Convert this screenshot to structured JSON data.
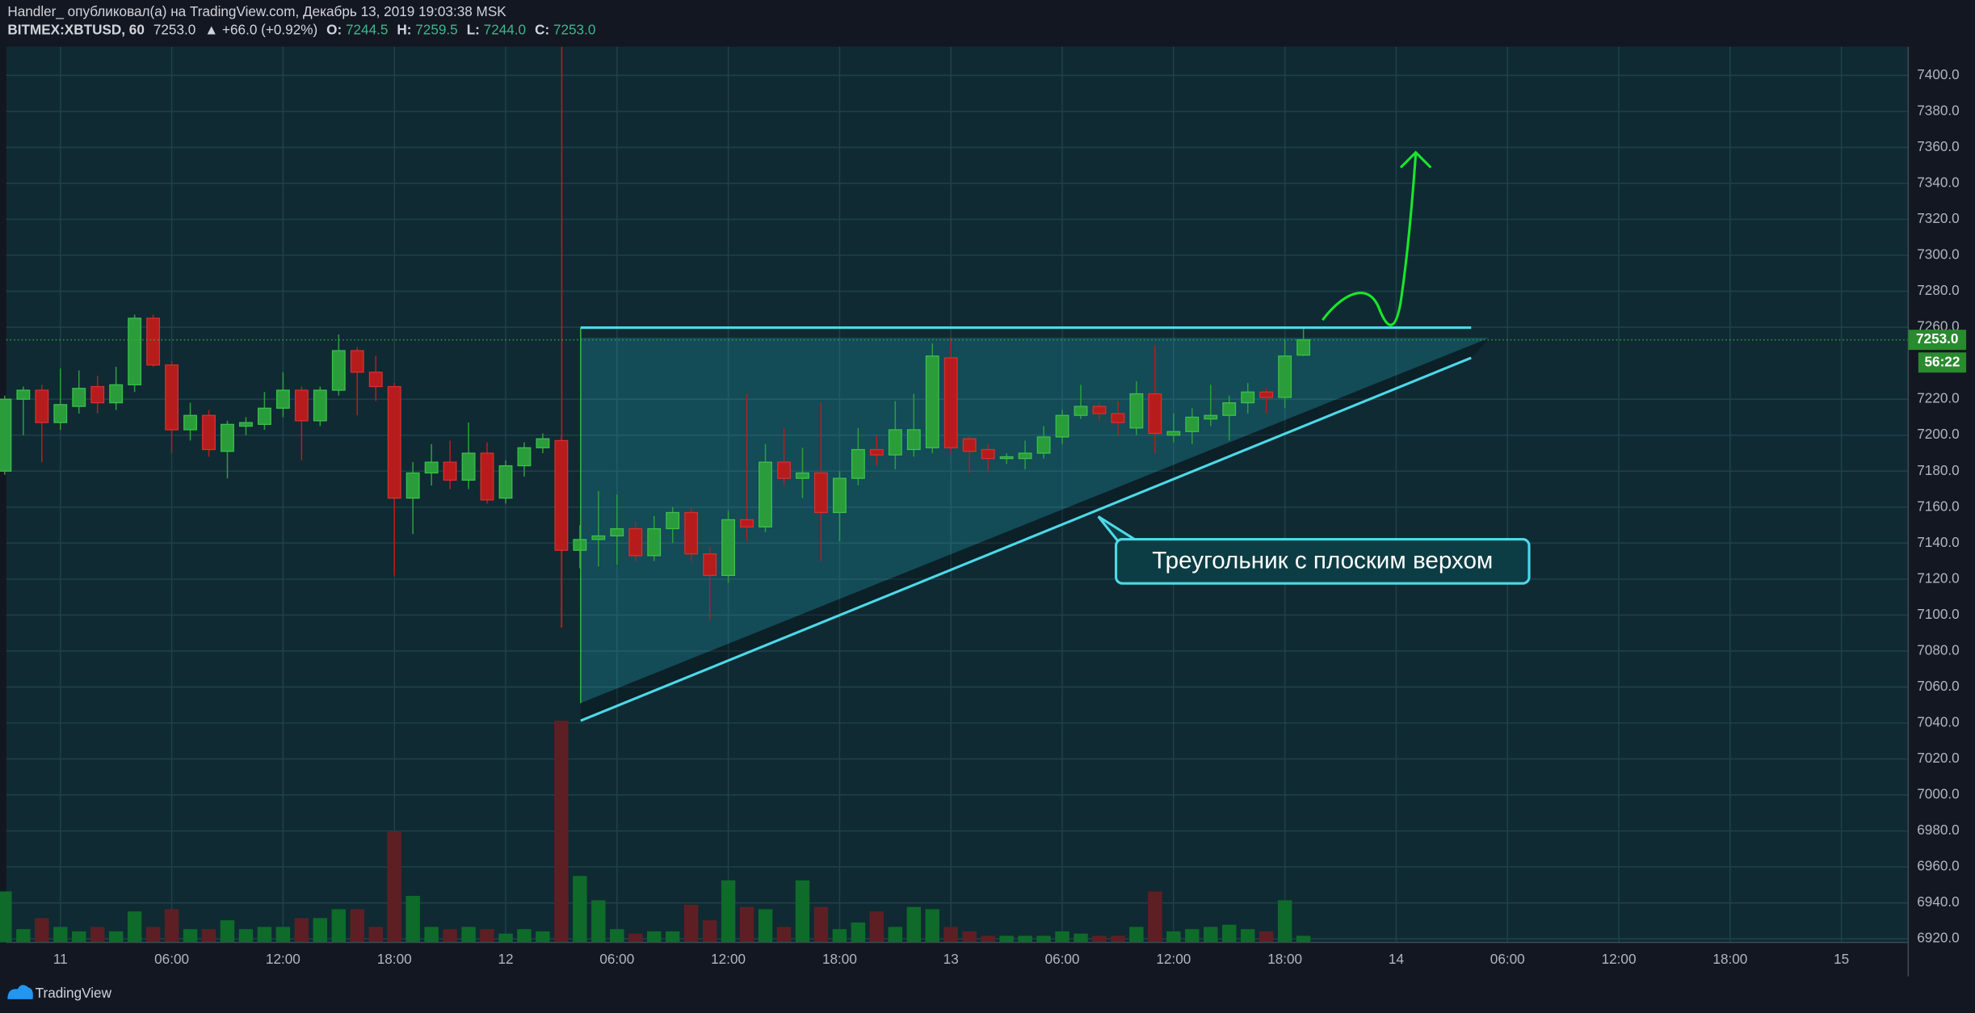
{
  "header": {
    "title": "Handler_ опубликовал(а) на TradingView.com, Декабрь 13, 2019 19:03:38 MSK",
    "symbol": "BITMEX:XBTUSD, 60",
    "last": "7253.0",
    "change": "▲ +66.0 (+0.92%)",
    "o_label": "O:",
    "o": "7244.5",
    "h_label": "H:",
    "h": "7259.5",
    "l_label": "L:",
    "l": "7244.0",
    "c_label": "C:",
    "c": "7253.0"
  },
  "chart_data": {
    "type": "candlestick",
    "x": [
      "10 21:00",
      "10 22:00",
      "10 23:00",
      "11 00:00",
      "11 01:00",
      "11 02:00",
      "11 03:00",
      "11 04:00",
      "11 05:00",
      "11 06:00",
      "11 07:00",
      "11 08:00",
      "11 09:00",
      "11 10:00",
      "11 11:00",
      "11 12:00",
      "11 13:00",
      "11 14:00",
      "11 15:00",
      "11 16:00",
      "11 17:00",
      "11 18:00",
      "11 19:00",
      "11 20:00",
      "11 21:00",
      "11 22:00",
      "11 23:00",
      "12 00:00",
      "12 01:00",
      "12 02:00",
      "12 03:00",
      "12 04:00",
      "12 05:00",
      "12 06:00",
      "12 07:00",
      "12 08:00",
      "12 09:00",
      "12 10:00",
      "12 11:00",
      "12 12:00",
      "12 13:00",
      "12 14:00",
      "12 15:00",
      "12 16:00",
      "12 17:00",
      "12 18:00",
      "12 19:00",
      "12 20:00",
      "12 21:00",
      "12 22:00",
      "12 23:00",
      "13 00:00",
      "13 01:00",
      "13 02:00",
      "13 03:00",
      "13 04:00",
      "13 05:00",
      "13 06:00",
      "13 07:00",
      "13 08:00",
      "13 09:00",
      "13 10:00",
      "13 11:00",
      "13 12:00",
      "13 13:00",
      "13 14:00",
      "13 15:00",
      "13 16:00",
      "13 17:00",
      "13 18:00",
      "13 19:00"
    ],
    "open": [
      7180,
      7220,
      7225,
      7207,
      7216,
      7227,
      7218,
      7228,
      7265,
      7239,
      7203,
      7211,
      7191,
      7205,
      7206,
      7215,
      7225,
      7208,
      7225,
      7247,
      7235,
      7227,
      7165,
      7179,
      7185,
      7175,
      7190,
      7165,
      7183,
      7193,
      7197,
      7136,
      7142,
      7144,
      7148,
      7133,
      7148,
      7157,
      7134,
      7122,
      7153,
      7149,
      7185,
      7176,
      7179,
      7157,
      7176,
      7192,
      7189,
      7192,
      7193,
      7243,
      7198,
      7192,
      7187,
      7187,
      7190,
      7199,
      7211,
      7216,
      7212,
      7204,
      7223,
      7200,
      7202,
      7209,
      7211,
      7218,
      7224,
      7221,
      7244.5
    ],
    "high": [
      7222,
      7227,
      7228,
      7237,
      7236,
      7233,
      7238,
      7267,
      7267,
      7241,
      7218,
      7214,
      7208,
      7210,
      7224,
      7235,
      7227,
      7227,
      7256,
      7249,
      7244,
      7229,
      7185,
      7195,
      7197,
      7207,
      7196,
      7186,
      7196,
      7201,
      7200,
      7150,
      7169,
      7167,
      7152,
      7155,
      7160,
      7160,
      7138,
      7158,
      7223,
      7195,
      7204,
      7193,
      7218,
      7180,
      7204,
      7200,
      7219,
      7223,
      7251,
      7254,
      7200,
      7195,
      7190,
      7197,
      7205,
      7214,
      7228,
      7218,
      7219,
      7230,
      7250,
      7212,
      7215,
      7228,
      7222,
      7229,
      7226,
      7253,
      7259.5
    ],
    "low": [
      7178,
      7200,
      7185,
      7203,
      7212,
      7212,
      7214,
      7224,
      7238,
      7190,
      7197,
      7188,
      7176,
      7200,
      7203,
      7210,
      7186,
      7205,
      7222,
      7211,
      7219,
      7122,
      7145,
      7172,
      7170,
      7170,
      7162,
      7162,
      7177,
      7190,
      7093,
      7126,
      7127,
      7128,
      7130,
      7130,
      7140,
      7130,
      7097,
      7118,
      7141,
      7146,
      7172,
      7165,
      7130,
      7141,
      7172,
      7183,
      7181,
      7188,
      7190,
      7190,
      7179,
      7180,
      7184,
      7181,
      7187,
      7195,
      7209,
      7208,
      7200,
      7200,
      7190,
      7196,
      7195,
      7205,
      7197,
      7212,
      7212,
      7215,
      7244
    ],
    "close": [
      7220,
      7225,
      7207,
      7217,
      7226,
      7218,
      7228,
      7265,
      7239,
      7203,
      7211,
      7192,
      7206,
      7207,
      7215,
      7225,
      7208,
      7225,
      7247,
      7235,
      7227,
      7165,
      7179,
      7185,
      7175,
      7190,
      7164,
      7183,
      7193,
      7198,
      7136,
      7142,
      7144,
      7148,
      7133,
      7148,
      7157,
      7134,
      7122,
      7153,
      7149,
      7185,
      7176,
      7179,
      7157,
      7176,
      7192,
      7189,
      7203,
      7203,
      7244,
      7193,
      7191,
      7187,
      7188,
      7190,
      7199,
      7211,
      7216,
      7212,
      7207,
      7223,
      7201,
      7202,
      7210,
      7211,
      7218,
      7224,
      7221,
      7244,
      7253
    ],
    "volume": [
      23,
      6,
      11,
      7,
      5,
      7,
      5,
      14,
      7,
      15,
      6,
      6,
      10,
      6,
      7,
      7,
      11,
      11,
      15,
      15,
      7,
      50,
      21,
      7,
      6,
      7,
      6,
      4,
      6,
      5,
      100,
      30,
      19,
      6,
      4,
      5,
      5,
      17,
      10,
      28,
      16,
      15,
      7,
      28,
      16,
      6,
      9,
      14,
      7,
      16,
      15,
      7,
      5,
      3,
      3,
      3,
      3,
      5,
      4,
      3,
      3,
      7,
      23,
      5,
      6,
      7,
      8,
      6,
      5,
      19,
      3
    ],
    "volume_ylim": [
      0,
      100
    ],
    "up_color": "#2a9d3a",
    "down_color": "#b71c1c",
    "volume_up_color": "#0f6b2a",
    "volume_down_color": "#5e1f24",
    "xlim": [
      "10 21:05",
      "15 03:36"
    ],
    "xticks": [
      {
        "value": "11 00:00",
        "label": "11"
      },
      {
        "value": "11 06:00",
        "label": "06:00"
      },
      {
        "value": "11 12:00",
        "label": "12:00"
      },
      {
        "value": "11 18:00",
        "label": "18:00"
      },
      {
        "value": "12 00:00",
        "label": "12"
      },
      {
        "value": "12 06:00",
        "label": "06:00"
      },
      {
        "value": "12 12:00",
        "label": "12:00"
      },
      {
        "value": "12 18:00",
        "label": "18:00"
      },
      {
        "value": "13 00:00",
        "label": "13"
      },
      {
        "value": "13 06:00",
        "label": "06:00"
      },
      {
        "value": "13 12:00",
        "label": "12:00"
      },
      {
        "value": "13 18:00",
        "label": "18:00"
      },
      {
        "value": "14 00:00",
        "label": "14"
      },
      {
        "value": "14 06:00",
        "label": "06:00"
      },
      {
        "value": "14 12:00",
        "label": "12:00"
      },
      {
        "value": "14 18:00",
        "label": "18:00"
      },
      {
        "value": "15 00:00",
        "label": "15"
      }
    ],
    "ylim": [
      6918,
      7416
    ],
    "yticks": [
      {
        "value": 7400,
        "label": "7400.0"
      },
      {
        "value": 7380,
        "label": "7380.0"
      },
      {
        "value": 7360,
        "label": "7360.0"
      },
      {
        "value": 7340,
        "label": "7340.0"
      },
      {
        "value": 7320,
        "label": "7320.0"
      },
      {
        "value": 7300,
        "label": "7300.0"
      },
      {
        "value": 7280,
        "label": "7280.0"
      },
      {
        "value": 7260,
        "label": "7260.0"
      },
      {
        "value": 7220,
        "label": "7220.0"
      },
      {
        "value": 7200,
        "label": "7200.0"
      },
      {
        "value": 7180,
        "label": "7180.0"
      },
      {
        "value": 7160,
        "label": "7160.0"
      },
      {
        "value": 7140,
        "label": "7140.0"
      },
      {
        "value": 7120,
        "label": "7120.0"
      },
      {
        "value": 7100,
        "label": "7100.0"
      },
      {
        "value": 7080,
        "label": "7080.0"
      },
      {
        "value": 7060,
        "label": "7060.0"
      },
      {
        "value": 7040,
        "label": "7040.0"
      },
      {
        "value": 7020,
        "label": "7020.0"
      },
      {
        "value": 7000,
        "label": "7000.0"
      },
      {
        "value": 6980,
        "label": "6980.0"
      },
      {
        "value": 6960,
        "label": "6960.0"
      },
      {
        "value": 6940,
        "label": "6940.0"
      },
      {
        "value": 6920,
        "label": "6920.0"
      }
    ],
    "grid": true,
    "last_price": {
      "value": 7253,
      "label": "7253.0"
    },
    "countdown": "56:22",
    "annotation": "Треугольник с плоским верхом"
  },
  "footer": {
    "brand": "TradingView"
  }
}
